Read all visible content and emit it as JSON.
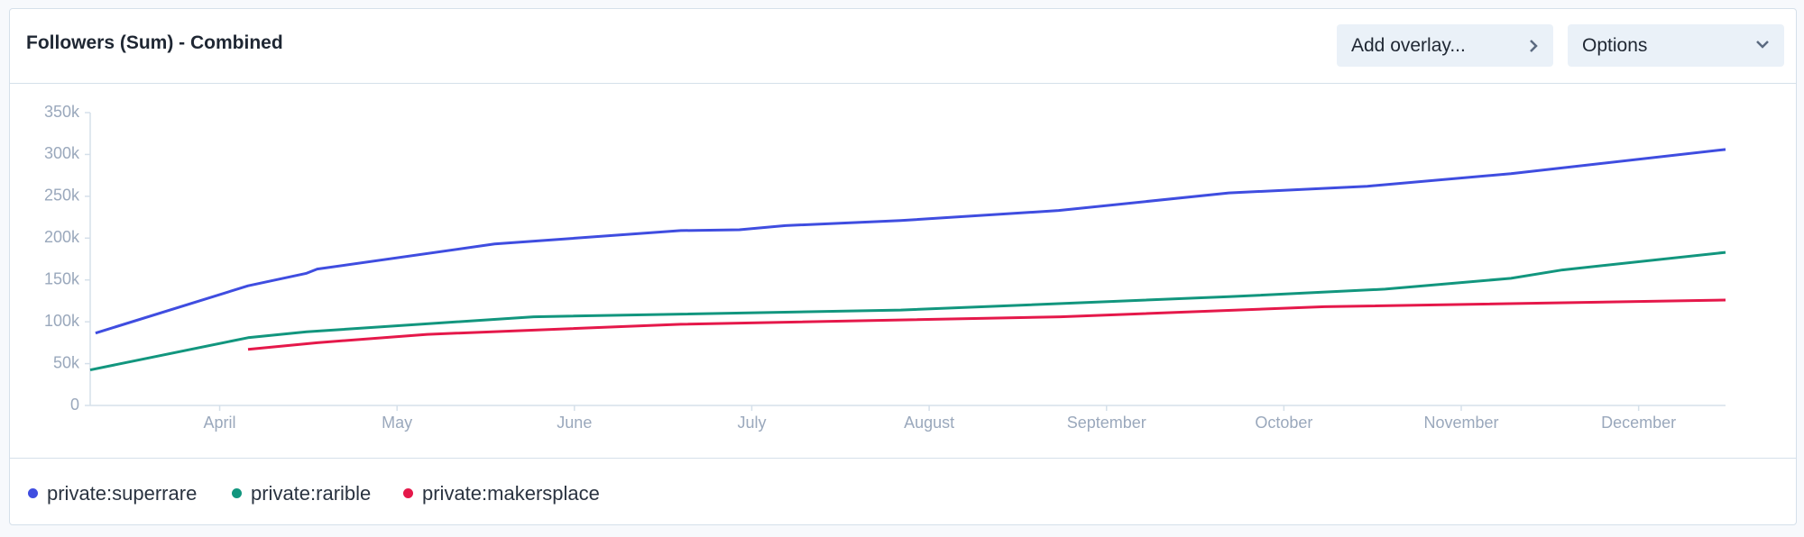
{
  "header": {
    "title": "Followers (Sum) - Combined",
    "buttons": [
      "Add overlay...",
      "Options"
    ]
  },
  "chart_data": {
    "type": "line",
    "xlim": [
      3.27,
      12.49
    ],
    "xticks": [
      {
        "value": 4,
        "label": "April"
      },
      {
        "value": 5,
        "label": "May"
      },
      {
        "value": 6,
        "label": "June"
      },
      {
        "value": 7,
        "label": "July"
      },
      {
        "value": 8,
        "label": "August"
      },
      {
        "value": 9,
        "label": "September"
      },
      {
        "value": 10,
        "label": "October"
      },
      {
        "value": 11,
        "label": "November"
      },
      {
        "value": 12,
        "label": "December"
      }
    ],
    "ylim": [
      0,
      350000
    ],
    "yticks": [
      0,
      {
        "value": 50000,
        "label": "50k"
      },
      {
        "value": 100000,
        "label": "100k"
      },
      {
        "value": 150000,
        "label": "150k"
      },
      {
        "value": 200000,
        "label": "200k"
      },
      {
        "value": 250000,
        "label": "250k"
      },
      {
        "value": 300000,
        "label": "300k"
      },
      {
        "value": 350000,
        "label": "350k"
      }
    ],
    "series": [
      {
        "name": "private:superrare",
        "color": "#3f4de0",
        "x": [
          3.3,
          4.16,
          4.49,
          4.55,
          5.55,
          6.6,
          6.93,
          7.19,
          7.84,
          8.73,
          9.69,
          10.47,
          11.28,
          12.49
        ],
        "values": [
          86500,
          143000,
          158000,
          163000,
          193000,
          209000,
          210000,
          215000,
          221000,
          233000,
          254000,
          262000,
          277000,
          306000
        ]
      },
      {
        "name": "private:rarible",
        "color": "#12967e",
        "x": [
          3.27,
          4.16,
          4.49,
          5.77,
          7.84,
          9.69,
          10.57,
          11.28,
          11.57,
          12.49
        ],
        "values": [
          42500,
          81000,
          88000,
          106000,
          114000,
          130000,
          139000,
          152000,
          162000,
          183000
        ]
      },
      {
        "name": "private:makersplace",
        "color": "#e5184a",
        "x": [
          4.16,
          4.55,
          5.17,
          6.6,
          8.74,
          10.23,
          12.49
        ],
        "values": [
          67000,
          75000,
          85000,
          97000,
          106000,
          118000,
          126000
        ]
      }
    ]
  }
}
